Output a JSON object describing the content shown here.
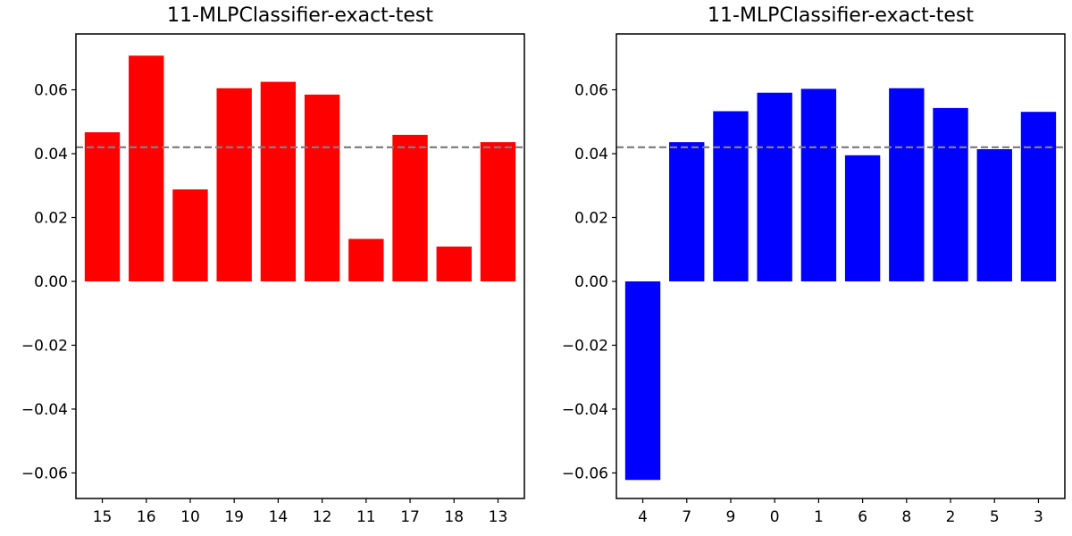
{
  "chart_data": [
    {
      "type": "bar",
      "title": "11-MLPClassifier-exact-test",
      "categories": [
        "15",
        "16",
        "10",
        "19",
        "14",
        "12",
        "11",
        "17",
        "18",
        "13"
      ],
      "values": [
        0.0467,
        0.0707,
        0.0288,
        0.0605,
        0.0625,
        0.0585,
        0.0133,
        0.0459,
        0.0109,
        0.0436
      ],
      "bar_color": "#ff0000",
      "reference_line": {
        "y": 0.042,
        "color": "#808080",
        "style": "dashed"
      },
      "ylim": [
        -0.068,
        0.0775
      ],
      "yticks": [
        -0.06,
        -0.04,
        -0.02,
        0.0,
        0.02,
        0.04,
        0.06
      ],
      "ytick_labels": [
        "−0.06",
        "−0.04",
        "−0.02",
        "0.00",
        "0.02",
        "0.04",
        "0.06"
      ],
      "xlabel": "",
      "ylabel": "",
      "grid": false
    },
    {
      "type": "bar",
      "title": "11-MLPClassifier-exact-test",
      "categories": [
        "4",
        "7",
        "9",
        "0",
        "1",
        "6",
        "8",
        "2",
        "5",
        "3"
      ],
      "values": [
        -0.0622,
        0.0436,
        0.0533,
        0.0591,
        0.0603,
        0.0395,
        0.0605,
        0.0543,
        0.0414,
        0.0531
      ],
      "bar_color": "#0000ff",
      "reference_line": {
        "y": 0.042,
        "color": "#808080",
        "style": "dashed"
      },
      "ylim": [
        -0.068,
        0.0775
      ],
      "yticks": [
        -0.06,
        -0.04,
        -0.02,
        0.0,
        0.02,
        0.04,
        0.06
      ],
      "ytick_labels": [
        "−0.06",
        "−0.04",
        "−0.02",
        "0.00",
        "0.02",
        "0.04",
        "0.06"
      ],
      "xlabel": "",
      "ylabel": "",
      "grid": false
    }
  ]
}
